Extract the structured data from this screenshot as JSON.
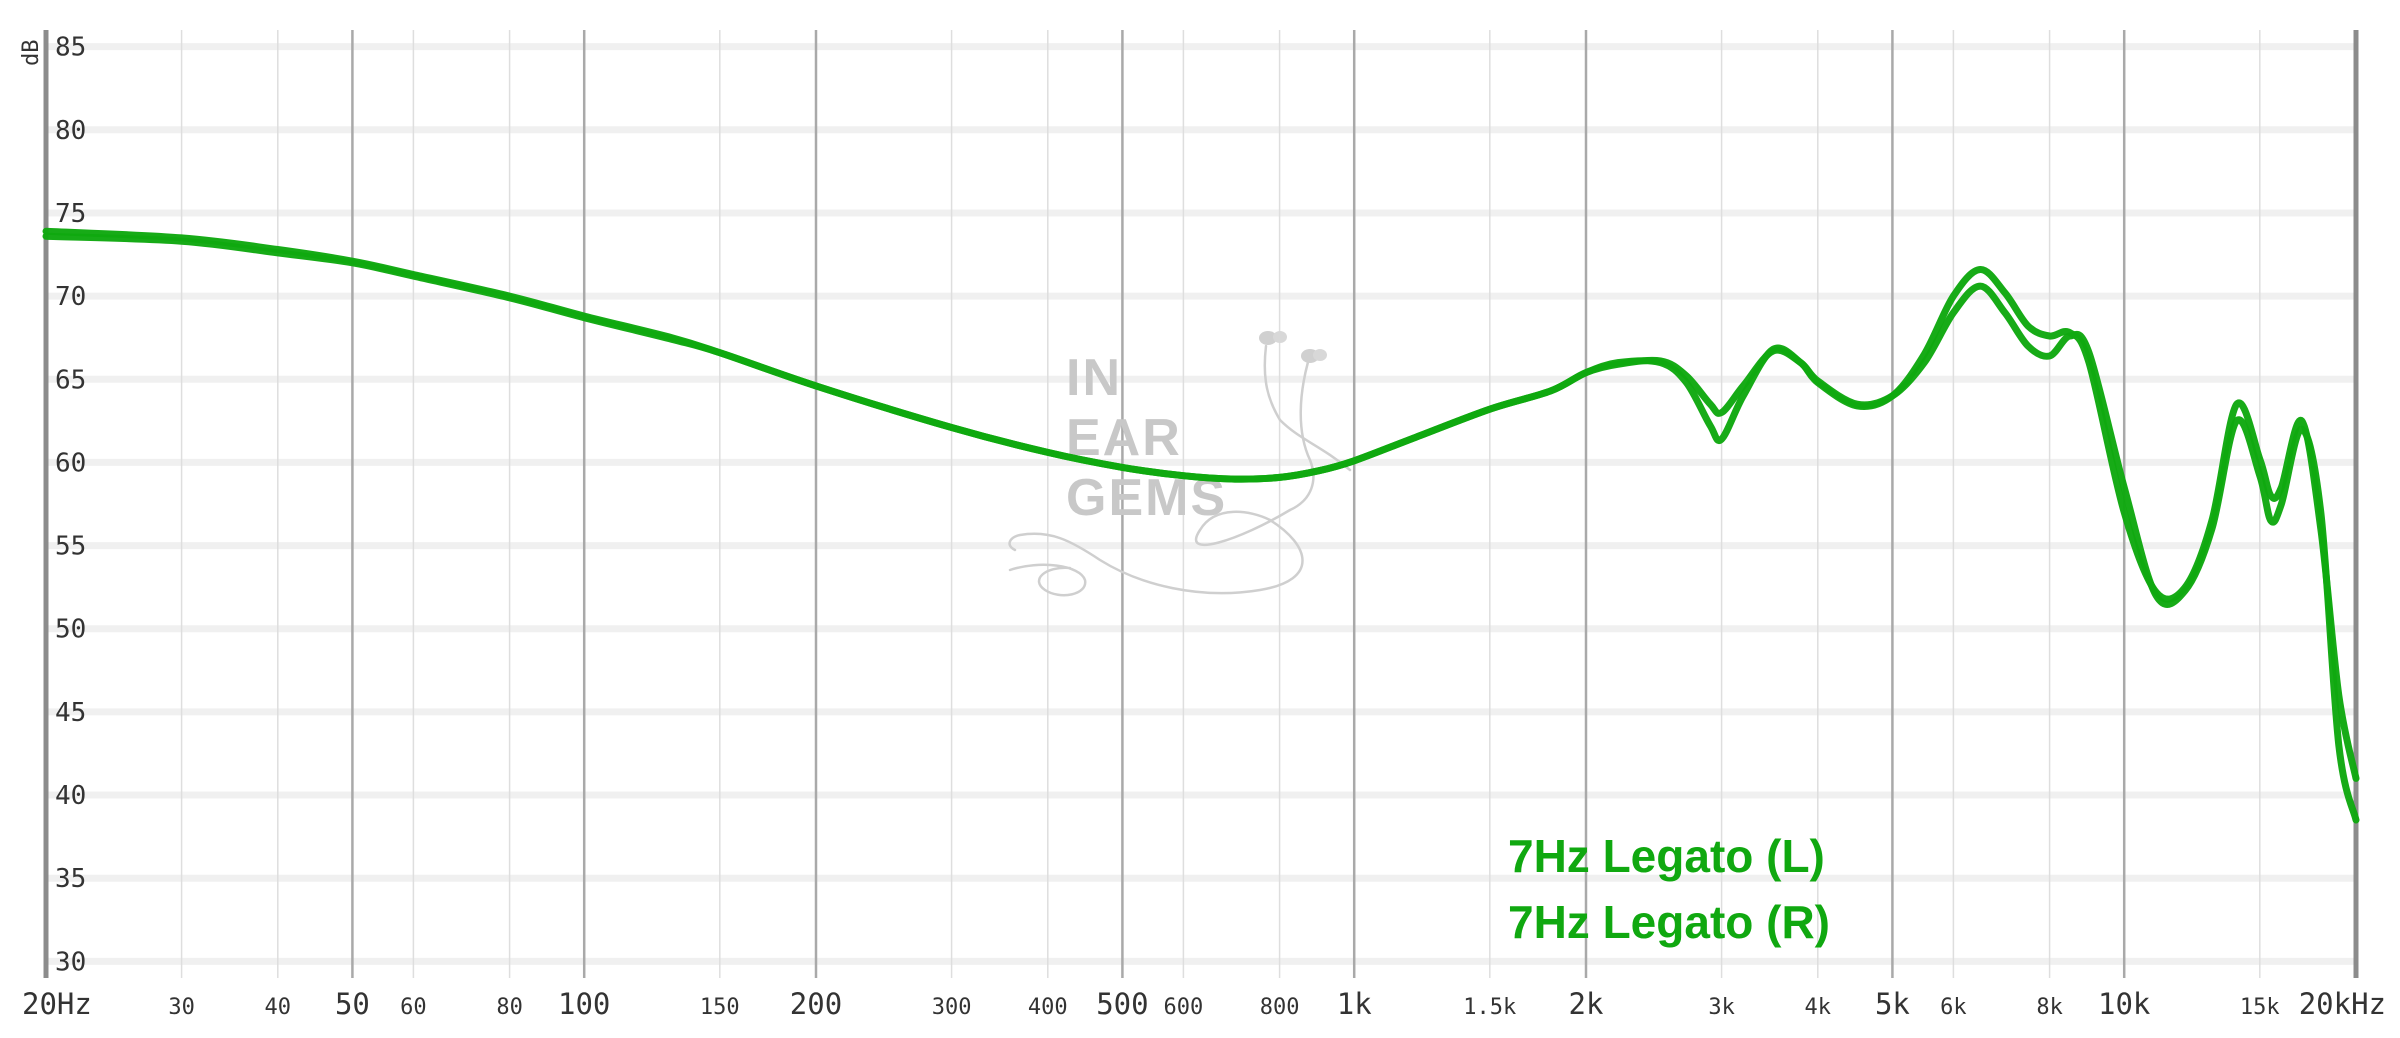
{
  "chart_data": {
    "type": "line",
    "ylabel": "dB",
    "x_scale": "log",
    "xlim": [
      20,
      20000
    ],
    "ylim": [
      29,
      86
    ],
    "y_ticks": [
      30,
      35,
      40,
      45,
      50,
      55,
      60,
      65,
      70,
      75,
      80,
      85
    ],
    "x_ticks": [
      {
        "value": 20,
        "label": "20Hz",
        "major": true
      },
      {
        "value": 30,
        "label": "30",
        "major": false
      },
      {
        "value": 40,
        "label": "40",
        "major": false
      },
      {
        "value": 50,
        "label": "50",
        "major": true
      },
      {
        "value": 60,
        "label": "60",
        "major": false
      },
      {
        "value": 80,
        "label": "80",
        "major": false
      },
      {
        "value": 100,
        "label": "100",
        "major": true
      },
      {
        "value": 150,
        "label": "150",
        "major": false
      },
      {
        "value": 200,
        "label": "200",
        "major": true
      },
      {
        "value": 300,
        "label": "300",
        "major": false
      },
      {
        "value": 400,
        "label": "400",
        "major": false
      },
      {
        "value": 500,
        "label": "500",
        "major": true
      },
      {
        "value": 600,
        "label": "600",
        "major": false
      },
      {
        "value": 800,
        "label": "800",
        "major": false
      },
      {
        "value": 1000,
        "label": "1k",
        "major": true
      },
      {
        "value": 1500,
        "label": "1.5k",
        "major": false
      },
      {
        "value": 2000,
        "label": "2k",
        "major": true
      },
      {
        "value": 3000,
        "label": "3k",
        "major": false
      },
      {
        "value": 4000,
        "label": "4k",
        "major": false
      },
      {
        "value": 5000,
        "label": "5k",
        "major": true
      },
      {
        "value": 6000,
        "label": "6k",
        "major": false
      },
      {
        "value": 8000,
        "label": "8k",
        "major": false
      },
      {
        "value": 10000,
        "label": "10k",
        "major": true
      },
      {
        "value": 15000,
        "label": "15k",
        "major": false
      },
      {
        "value": 20000,
        "label": "20kHz",
        "major": true
      }
    ],
    "legend_placement": "bottom-center",
    "series": [
      {
        "name": "7Hz Legato (L)",
        "color": "#10a810",
        "points": [
          [
            20,
            73.9
          ],
          [
            30,
            73.5
          ],
          [
            40,
            72.8
          ],
          [
            50,
            72.1
          ],
          [
            60,
            71.3
          ],
          [
            80,
            70.0
          ],
          [
            100,
            68.8
          ],
          [
            130,
            67.5
          ],
          [
            150,
            66.6
          ],
          [
            200,
            64.6
          ],
          [
            300,
            62.1
          ],
          [
            400,
            60.6
          ],
          [
            500,
            59.7
          ],
          [
            600,
            59.2
          ],
          [
            700,
            59.0
          ],
          [
            800,
            59.1
          ],
          [
            900,
            59.5
          ],
          [
            1000,
            60.1
          ],
          [
            1200,
            61.5
          ],
          [
            1500,
            63.2
          ],
          [
            1800,
            64.3
          ],
          [
            2000,
            65.4
          ],
          [
            2200,
            66.0
          ],
          [
            2500,
            66.0
          ],
          [
            2700,
            64.8
          ],
          [
            2900,
            62.2
          ],
          [
            3000,
            61.4
          ],
          [
            3200,
            64.0
          ],
          [
            3500,
            66.8
          ],
          [
            3800,
            66.0
          ],
          [
            4000,
            64.8
          ],
          [
            4500,
            63.4
          ],
          [
            5000,
            64.0
          ],
          [
            5500,
            66.5
          ],
          [
            6000,
            70.0
          ],
          [
            6500,
            71.6
          ],
          [
            7000,
            70.2
          ],
          [
            7500,
            68.2
          ],
          [
            8000,
            67.6
          ],
          [
            8500,
            67.8
          ],
          [
            9000,
            66.0
          ],
          [
            10000,
            57.0
          ],
          [
            11000,
            52.2
          ],
          [
            12000,
            52.5
          ],
          [
            13000,
            56.5
          ],
          [
            14000,
            63.5
          ],
          [
            15000,
            60.2
          ],
          [
            15500,
            58.0
          ],
          [
            16000,
            58.5
          ],
          [
            17000,
            62.5
          ],
          [
            18000,
            56.0
          ],
          [
            19000,
            46.0
          ],
          [
            20000,
            41.0
          ]
        ]
      },
      {
        "name": "7Hz Legato (R)",
        "color": "#10a810",
        "points": [
          [
            20,
            73.6
          ],
          [
            30,
            73.3
          ],
          [
            40,
            72.6
          ],
          [
            50,
            72.0
          ],
          [
            60,
            71.2
          ],
          [
            80,
            69.9
          ],
          [
            100,
            68.7
          ],
          [
            130,
            67.4
          ],
          [
            150,
            66.6
          ],
          [
            200,
            64.6
          ],
          [
            300,
            62.1
          ],
          [
            400,
            60.6
          ],
          [
            500,
            59.7
          ],
          [
            600,
            59.2
          ],
          [
            700,
            59.0
          ],
          [
            800,
            59.1
          ],
          [
            900,
            59.5
          ],
          [
            1000,
            60.1
          ],
          [
            1200,
            61.5
          ],
          [
            1500,
            63.2
          ],
          [
            1800,
            64.3
          ],
          [
            2000,
            65.4
          ],
          [
            2200,
            65.9
          ],
          [
            2500,
            66.1
          ],
          [
            2700,
            65.2
          ],
          [
            2900,
            63.5
          ],
          [
            3000,
            63.0
          ],
          [
            3200,
            64.6
          ],
          [
            3500,
            66.7
          ],
          [
            3800,
            66.0
          ],
          [
            4000,
            64.9
          ],
          [
            4500,
            63.5
          ],
          [
            5000,
            64.0
          ],
          [
            5500,
            66.0
          ],
          [
            6000,
            69.0
          ],
          [
            6500,
            70.6
          ],
          [
            7000,
            69.0
          ],
          [
            7500,
            67.0
          ],
          [
            8000,
            66.4
          ],
          [
            8500,
            67.6
          ],
          [
            9000,
            66.6
          ],
          [
            10000,
            58.5
          ],
          [
            11000,
            52.0
          ],
          [
            12000,
            52.3
          ],
          [
            13000,
            56.0
          ],
          [
            14000,
            62.5
          ],
          [
            15000,
            59.2
          ],
          [
            15500,
            56.5
          ],
          [
            16000,
            57.5
          ],
          [
            17000,
            62.0
          ],
          [
            18000,
            57.0
          ],
          [
            19000,
            43.0
          ],
          [
            20000,
            38.5
          ]
        ]
      }
    ]
  },
  "watermark": {
    "lines": [
      "IN",
      "EAR",
      "GEMS"
    ],
    "icon": "earphones-icon"
  }
}
